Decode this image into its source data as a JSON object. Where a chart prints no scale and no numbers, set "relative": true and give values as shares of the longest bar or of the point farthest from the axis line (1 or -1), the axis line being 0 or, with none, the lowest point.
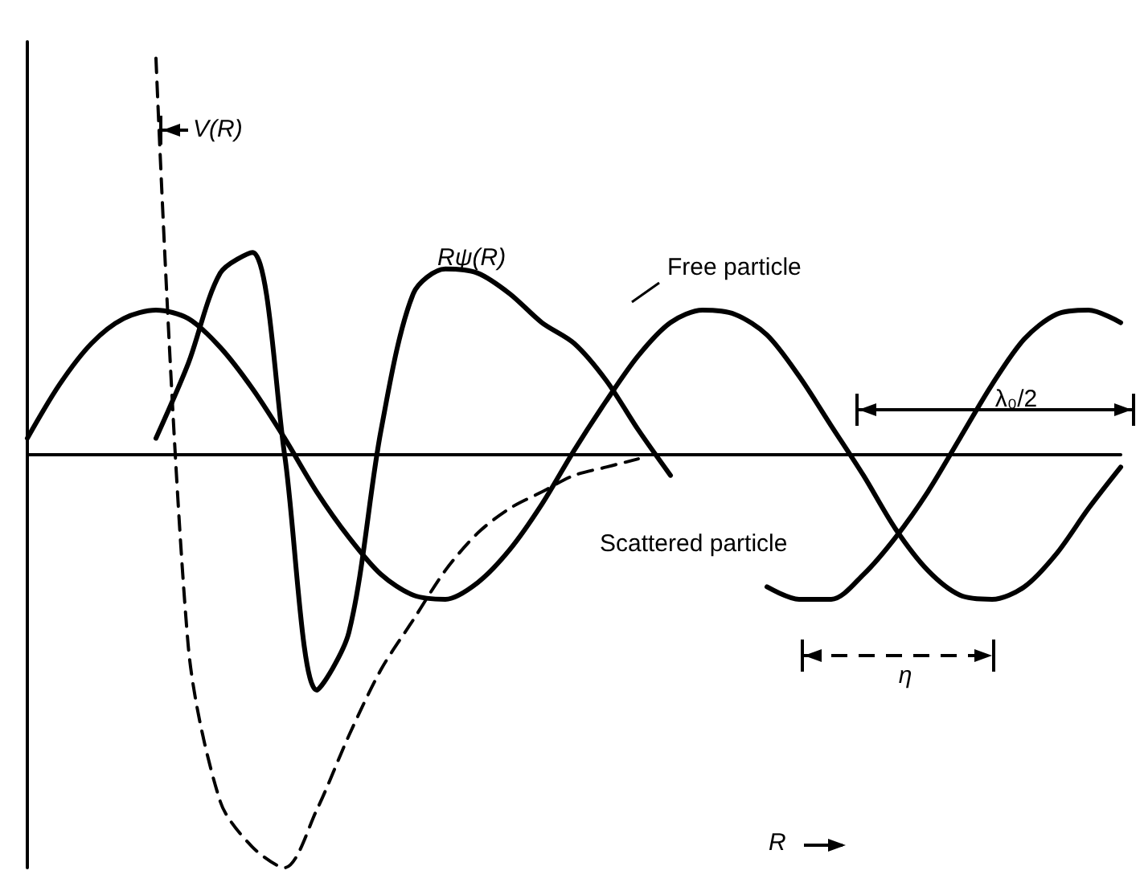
{
  "chart_data": {
    "type": "line",
    "relative": true,
    "xlabel": "R",
    "grid": false,
    "marker": "none",
    "categories": [
      null,
      null,
      null,
      null,
      null,
      null,
      null,
      null,
      null,
      null,
      null,
      null,
      null,
      null,
      null,
      null,
      null,
      null,
      null,
      null,
      null,
      null,
      null,
      null,
      null,
      null,
      null,
      null,
      null,
      null,
      null,
      null,
      null,
      null,
      null
    ],
    "series": [
      {
        "name": "Free particle",
        "color": "#000000",
        "line_style": "solid",
        "values": [
          0.04,
          0.17,
          0.27,
          0.33,
          0.35,
          0.33,
          0.26,
          0.16,
          0.04,
          -0.09,
          -0.2,
          -0.29,
          -0.34,
          -0.35,
          -0.31,
          -0.23,
          -0.12,
          0.01,
          0.13,
          0.24,
          0.32,
          0.35,
          0.34,
          0.29,
          0.19,
          0.07,
          -0.05,
          -0.18,
          -0.28,
          -0.34,
          -0.35,
          -0.32,
          -0.24,
          -0.13,
          -0.03
        ]
      },
      {
        "name": "Scattered particle",
        "color": "#000000",
        "line_style": "solid",
        "values": [
          null,
          null,
          null,
          null,
          0.04,
          0.22,
          0.44,
          0.49,
          0.0,
          -0.57,
          -0.43,
          0.06,
          0.39,
          0.45,
          0.44,
          0.39,
          0.32,
          0.27,
          0.18,
          0.06,
          -0.05,
          null,
          null,
          -0.32,
          -0.35,
          -0.35,
          -0.29,
          -0.2,
          -0.09,
          0.04,
          0.17,
          0.28,
          0.34,
          0.35,
          0.32
        ]
      },
      {
        "color": "#000000",
        "line_style": "dashed",
        "values": [
          null,
          null,
          null,
          null,
          0.96,
          -0.46,
          -0.84,
          -0.95,
          -1.0,
          -0.86,
          -0.68,
          -0.52,
          -0.4,
          -0.28,
          -0.19,
          -0.13,
          -0.09,
          -0.05,
          -0.03,
          -0.01,
          null,
          null,
          null,
          null,
          null,
          null,
          null,
          null,
          null,
          null,
          null,
          null,
          null,
          null,
          null
        ]
      }
    ],
    "annotations": [
      "Rψ(R)",
      "λ₀/2",
      "η",
      "V(R)"
    ]
  }
}
